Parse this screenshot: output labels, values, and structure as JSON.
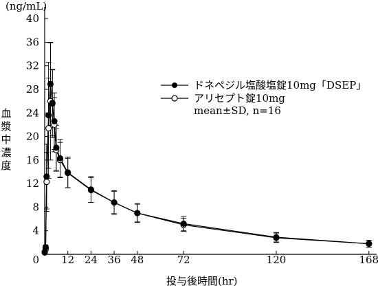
{
  "chart_data": {
    "type": "line",
    "unit": "(ng/mL)",
    "ylabel": "血漿中濃度",
    "xlabel": "投与後時間(hr)",
    "xticks": [
      0,
      12,
      24,
      36,
      48,
      72,
      120,
      168
    ],
    "yticks": [
      4,
      8,
      12,
      16,
      20,
      24,
      28,
      32,
      36,
      40
    ],
    "xlim": [
      0,
      172
    ],
    "ylim": [
      0,
      42
    ],
    "legend_note": "mean±SD, n=16",
    "series": [
      {
        "name": "ドネペジル塩酸塩錠10mg「DSEP」",
        "marker": "filled-circle",
        "x": [
          0,
          0.5,
          1,
          2,
          3,
          4,
          5,
          6,
          8,
          12,
          24,
          36,
          48,
          72,
          120,
          168
        ],
        "y": [
          0.4,
          1.2,
          13.2,
          23.6,
          28.9,
          25.7,
          22.6,
          18.1,
          16.3,
          13.9,
          11.0,
          8.8,
          7.0,
          5.2,
          2.9,
          1.8
        ],
        "sd": [
          0,
          0.4,
          5.5,
          9.0,
          7.0,
          5.6,
          4.8,
          3.8,
          3.2,
          2.6,
          2.2,
          2.0,
          1.6,
          1.2,
          0.8,
          0.6
        ]
      },
      {
        "name": "アリセプト錠10mg",
        "marker": "open-circle",
        "x": [
          0,
          0.5,
          1,
          2,
          3,
          4,
          5,
          6,
          8,
          12,
          24,
          36,
          48,
          72,
          120,
          168
        ],
        "y": [
          0.3,
          0.9,
          12.3,
          21.4,
          26.0,
          25.6,
          22.0,
          17.7,
          16.0,
          13.8,
          10.9,
          8.8,
          7.0,
          5.0,
          2.8,
          1.8
        ],
        "sd": [
          0,
          0.3,
          5.0,
          8.5,
          10.0,
          5.8,
          4.6,
          3.6,
          3.0,
          2.5,
          2.1,
          1.9,
          1.5,
          1.1,
          0.8,
          0.6
        ]
      }
    ]
  }
}
